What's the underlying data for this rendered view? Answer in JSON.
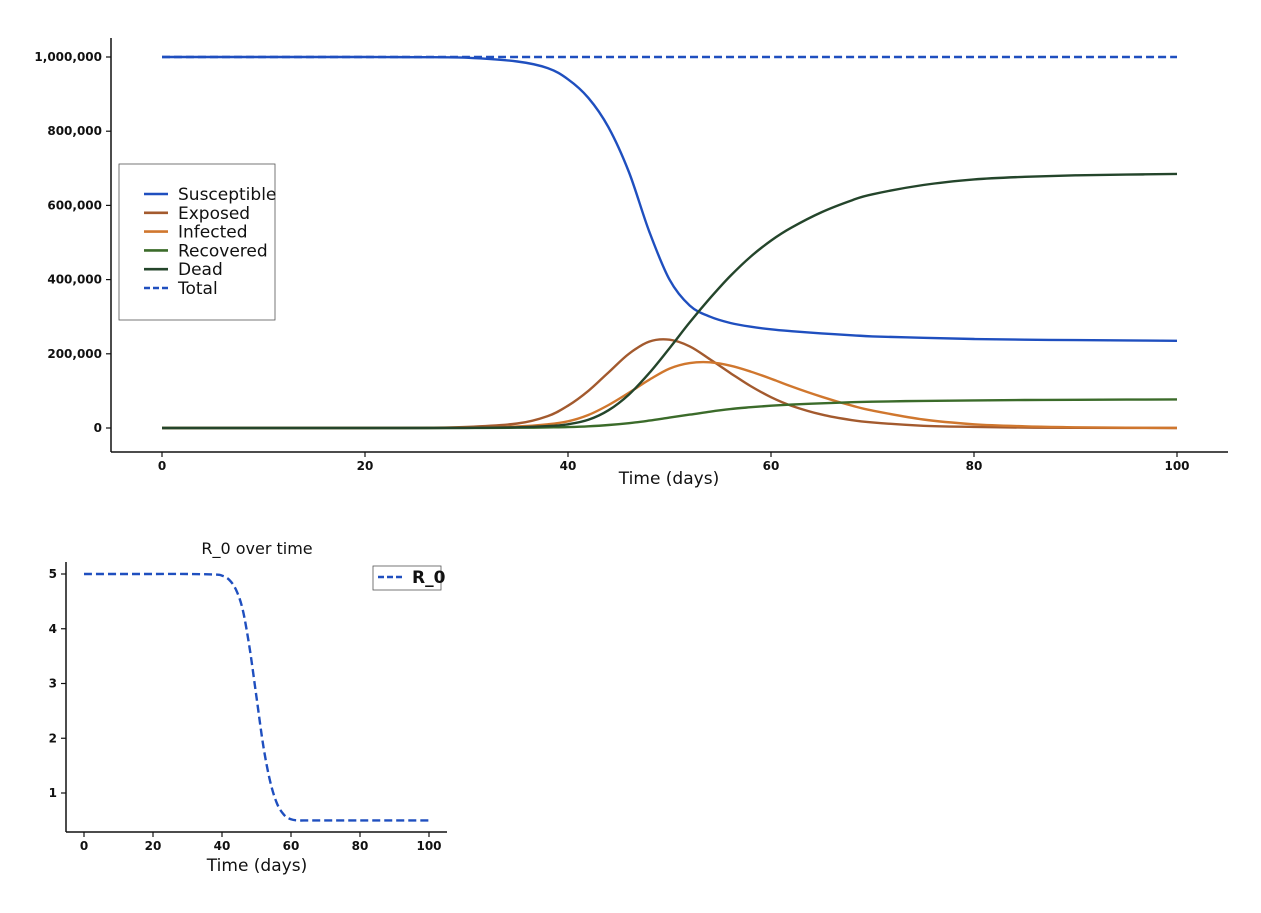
{
  "chart_data": [
    {
      "type": "line",
      "title": "",
      "xlabel": "Time (days)",
      "ylabel": "",
      "xlim": [
        -5,
        105
      ],
      "ylim": [
        -50000,
        1050000
      ],
      "xticks": [
        0,
        20,
        40,
        60,
        80,
        100
      ],
      "xtick_labels": [
        "0",
        "20",
        "40",
        "60",
        "80",
        "100"
      ],
      "yticks": [
        0,
        200000,
        400000,
        600000,
        800000,
        1000000
      ],
      "ytick_labels": [
        "0",
        "200,000",
        "400,000",
        "600,000",
        "800,000",
        "1,000,000"
      ],
      "grid": false,
      "legend_position": "center-left",
      "x": [
        0,
        10,
        20,
        25,
        30,
        35,
        38,
        40,
        42,
        44,
        46,
        48,
        50,
        52,
        54,
        56,
        58,
        60,
        62,
        65,
        68,
        70,
        75,
        80,
        85,
        90,
        95,
        100
      ],
      "series": [
        {
          "name": "Susceptible",
          "color": "#1f4fbf",
          "dash": false,
          "values": [
            1000000,
            1000000,
            999900,
            999500,
            998000,
            988000,
            970000,
            940000,
            890000,
            810000,
            690000,
            530000,
            400000,
            330000,
            300000,
            283000,
            273000,
            266000,
            261000,
            255000,
            250000,
            247000,
            243000,
            240000,
            238000,
            237000,
            236000,
            235000
          ]
        },
        {
          "name": "Exposed",
          "color": "#a35a2e",
          "dash": false,
          "values": [
            0,
            0,
            100,
            600,
            3000,
            12000,
            32000,
            60000,
            100000,
            150000,
            200000,
            233000,
            238000,
            220000,
            185000,
            148000,
            113000,
            83000,
            60000,
            36000,
            21000,
            15000,
            6000,
            3000,
            1200,
            500,
            200,
            100
          ]
        },
        {
          "name": "Infected",
          "color": "#d0772e",
          "dash": false,
          "values": [
            0,
            0,
            50,
            200,
            900,
            4000,
            10000,
            18000,
            35000,
            62000,
            95000,
            130000,
            160000,
            175000,
            177000,
            168000,
            152000,
            133000,
            112000,
            84000,
            60000,
            47000,
            23000,
            10000,
            4500,
            2000,
            800,
            300
          ]
        },
        {
          "name": "Recovered",
          "color": "#3b6b2a",
          "dash": false,
          "values": [
            0,
            0,
            20,
            60,
            200,
            700,
            1500,
            2500,
            4500,
            8000,
            13000,
            20000,
            28000,
            36000,
            44000,
            51000,
            56000,
            60000,
            63000,
            66500,
            69500,
            71000,
            73000,
            74500,
            75500,
            76000,
            76500,
            77000
          ]
        },
        {
          "name": "Dead",
          "color": "#24452b",
          "dash": false,
          "values": [
            0,
            0,
            0,
            100,
            400,
            2000,
            5000,
            10000,
            22000,
            48000,
            90000,
            148000,
            215000,
            285000,
            350000,
            410000,
            462000,
            505000,
            540000,
            582000,
            614000,
            630000,
            655000,
            670000,
            677000,
            681000,
            683000,
            685000
          ]
        },
        {
          "name": "Total",
          "color": "#1f4fbf",
          "dash": true,
          "values": [
            1000000,
            1000000,
            1000000,
            1000000,
            1000000,
            1000000,
            1000000,
            1000000,
            1000000,
            1000000,
            1000000,
            1000000,
            1000000,
            1000000,
            1000000,
            1000000,
            1000000,
            1000000,
            1000000,
            1000000,
            1000000,
            1000000,
            1000000,
            1000000,
            1000000,
            1000000,
            1000000,
            1000000
          ]
        }
      ]
    },
    {
      "type": "line",
      "title": "R_0 over time",
      "xlabel": "Time (days)",
      "ylabel": "",
      "xlim": [
        -5,
        105
      ],
      "ylim": [
        0.3,
        5.2
      ],
      "xticks": [
        0,
        20,
        40,
        60,
        80,
        100
      ],
      "xtick_labels": [
        "0",
        "20",
        "40",
        "60",
        "80",
        "100"
      ],
      "yticks": [
        1,
        2,
        3,
        4,
        5
      ],
      "ytick_labels": [
        "1",
        "2",
        "3",
        "4",
        "5"
      ],
      "grid": false,
      "legend_position": "top-right",
      "x": [
        0,
        10,
        20,
        30,
        38,
        40,
        42,
        44,
        46,
        48,
        50,
        52,
        54,
        56,
        58,
        60,
        62,
        65,
        70,
        80,
        90,
        100
      ],
      "series": [
        {
          "name": "R_0",
          "color": "#1f4fbf",
          "dash": true,
          "values": [
            5,
            5,
            5,
            5,
            4.99,
            4.97,
            4.9,
            4.72,
            4.35,
            3.65,
            2.75,
            1.85,
            1.2,
            0.8,
            0.6,
            0.52,
            0.5,
            0.5,
            0.5,
            0.5,
            0.5,
            0.5
          ]
        }
      ]
    }
  ]
}
